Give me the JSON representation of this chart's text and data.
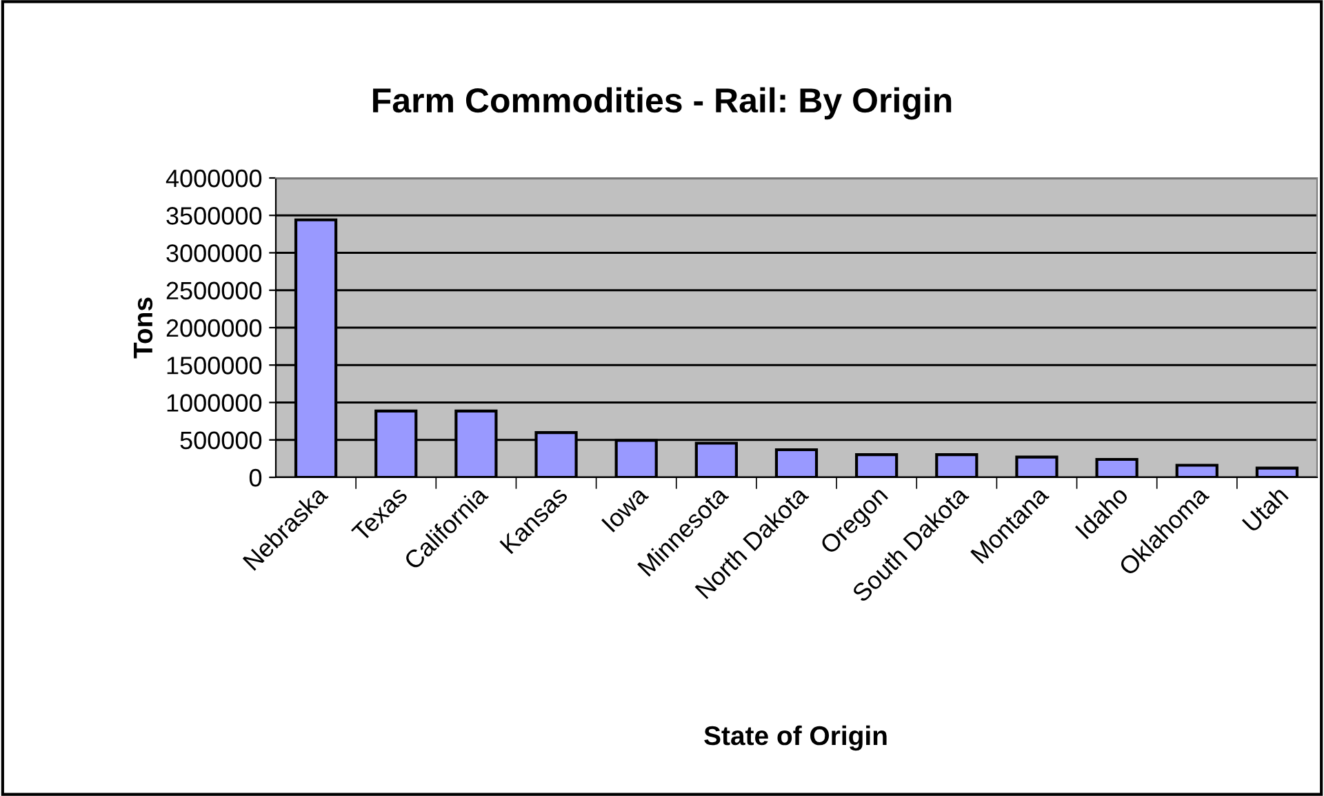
{
  "chart_data": {
    "type": "bar",
    "title": "Farm Commodities - Rail: By Origin",
    "xlabel": "State of Origin",
    "ylabel": "Tons",
    "categories": [
      "Nebraska",
      "Texas",
      "California",
      "Kansas",
      "Iowa",
      "Minnesota",
      "North Dakota",
      "Oregon",
      "South Dakota",
      "Montana",
      "Idaho",
      "Oklahoma",
      "Utah"
    ],
    "values": [
      3440000,
      886000,
      886000,
      598000,
      493000,
      456000,
      369000,
      303000,
      303000,
      271000,
      240000,
      161000,
      124000
    ],
    "color": "#9999ff",
    "ylim": [
      0,
      4000000
    ],
    "yticks": [
      0,
      500000,
      1000000,
      1500000,
      2000000,
      2500000,
      3000000,
      3500000,
      4000000
    ],
    "grid": "y"
  }
}
